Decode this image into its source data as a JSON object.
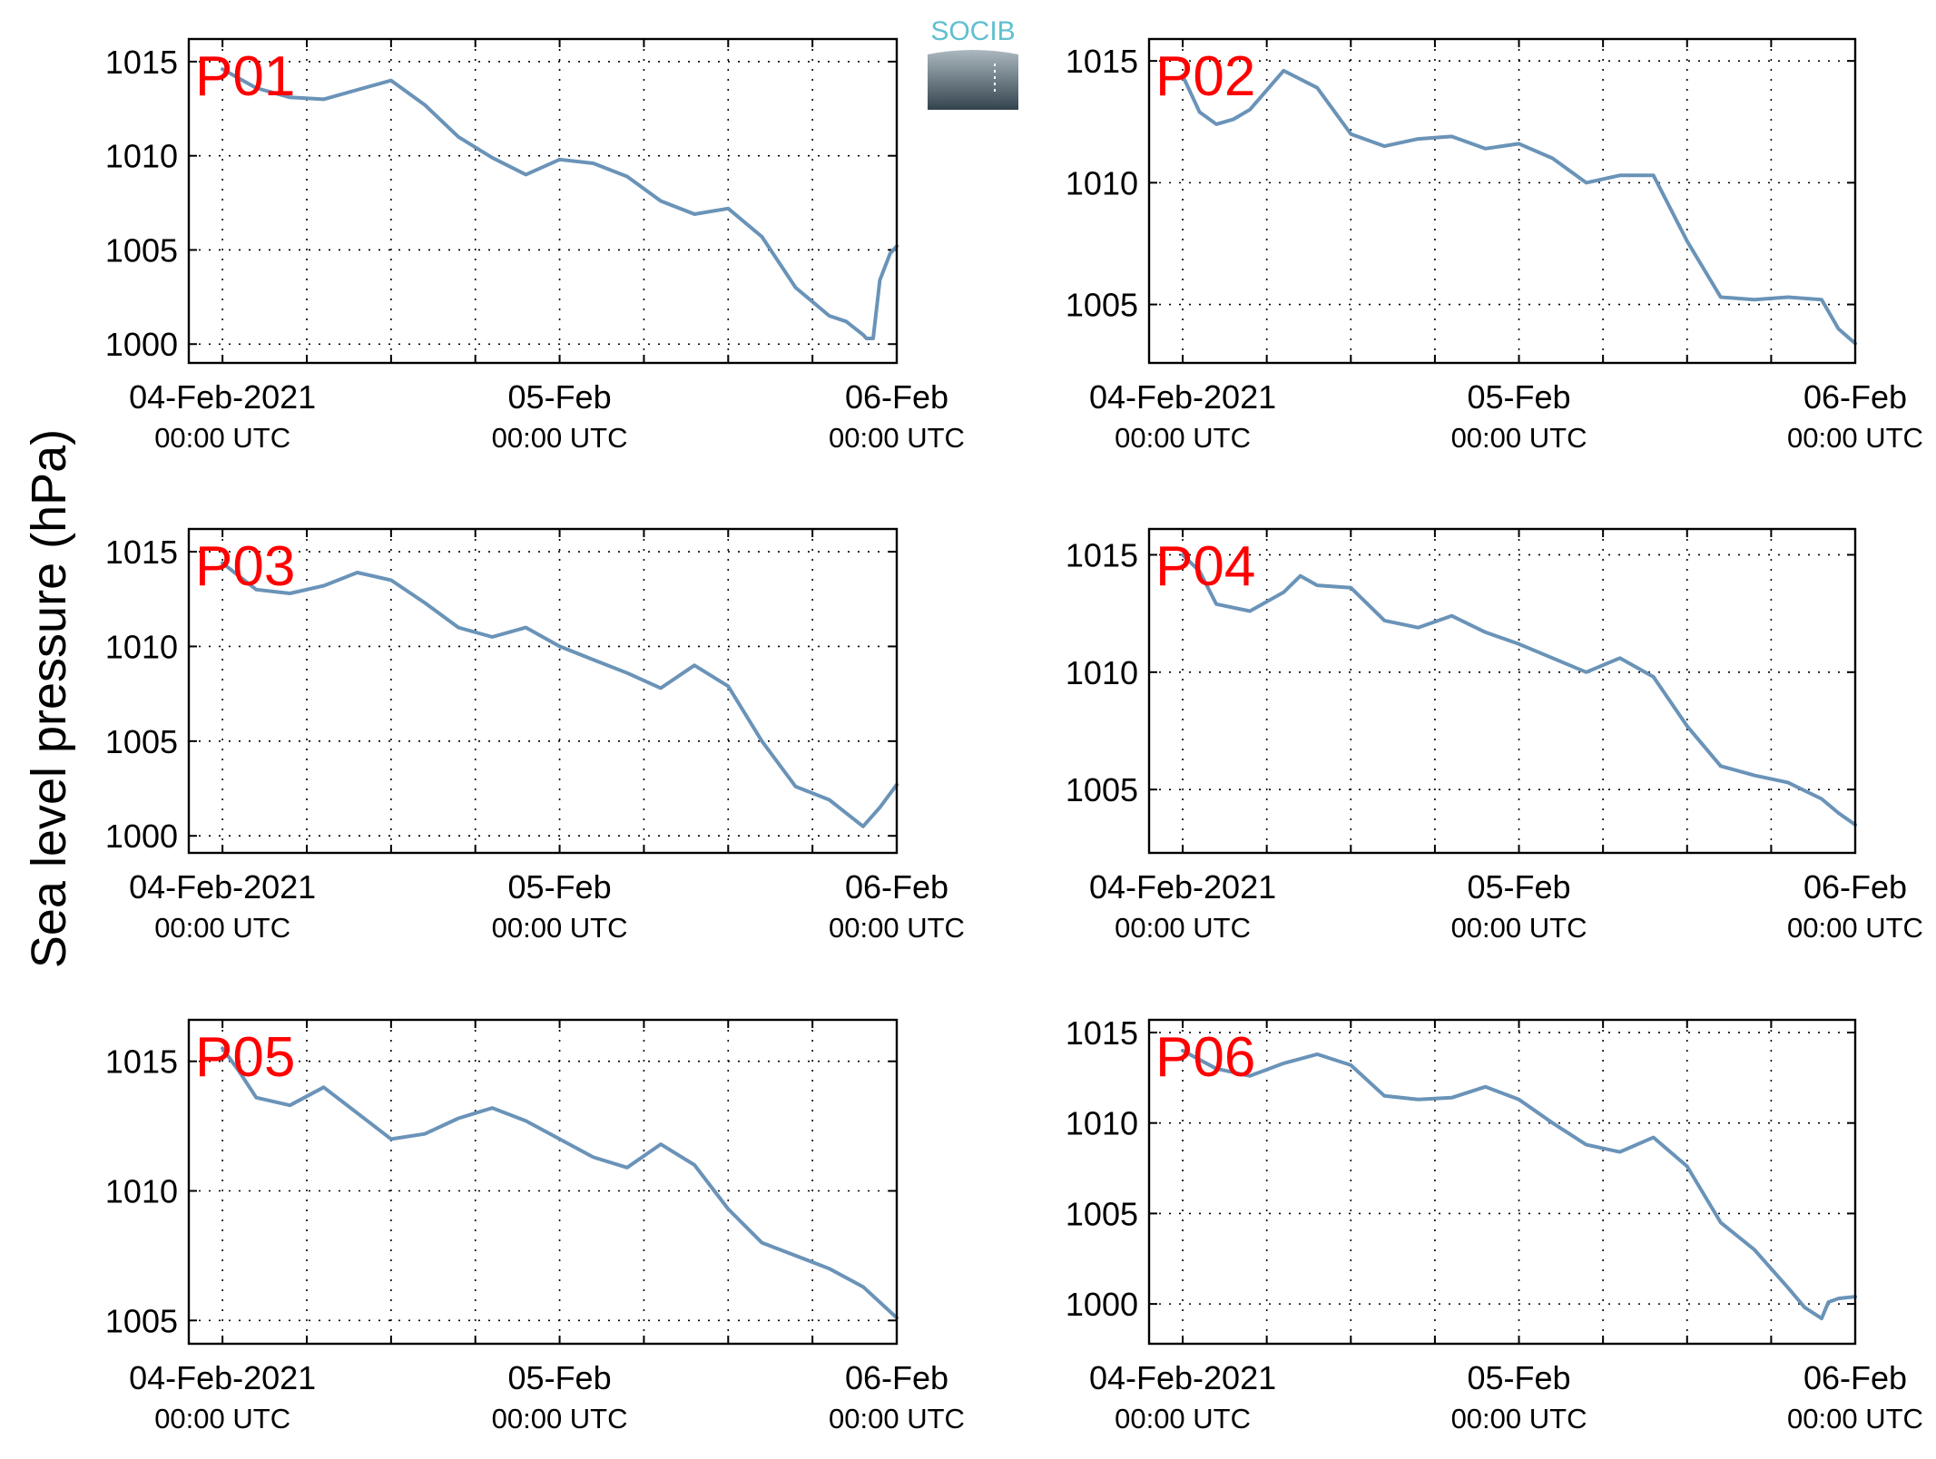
{
  "figure": {
    "ylabel": "Sea level pressure (hPa)",
    "logo_text": "SOCIB",
    "colors": {
      "line": "#6a93b8",
      "panel_label": "#ff0000",
      "logo_text": "#5fbfd0"
    },
    "x_tick_labels": [
      {
        "date": "04-Feb-2021",
        "time": "00:00 UTC"
      },
      {
        "date": "05-Feb",
        "time": "00:00 UTC"
      },
      {
        "date": "06-Feb",
        "time": "00:00 UTC"
      }
    ]
  },
  "chart_data": [
    {
      "type": "line",
      "label": "P01",
      "grid": true,
      "xlim": [
        -0.1,
        2.0
      ],
      "ylim": [
        999,
        1016.2
      ],
      "yticks": [
        1000,
        1005,
        1010,
        1015
      ],
      "x": [
        0.0,
        0.1,
        0.2,
        0.3,
        0.4,
        0.5,
        0.6,
        0.7,
        0.8,
        0.9,
        1.0,
        1.1,
        1.2,
        1.3,
        1.4,
        1.5,
        1.6,
        1.7,
        1.8,
        1.85,
        1.9,
        1.91,
        1.93,
        1.95,
        1.98,
        2.0
      ],
      "values": [
        1014.6,
        1013.6,
        1013.1,
        1013.0,
        1013.5,
        1014.0,
        1012.7,
        1011.0,
        1009.9,
        1009.0,
        1009.8,
        1009.6,
        1008.9,
        1007.6,
        1006.9,
        1007.2,
        1005.7,
        1003.0,
        1001.5,
        1001.2,
        1000.5,
        1000.3,
        1000.3,
        1003.4,
        1004.8,
        1005.2
      ]
    },
    {
      "type": "line",
      "label": "P02",
      "grid": true,
      "xlim": [
        -0.1,
        2.0
      ],
      "ylim": [
        1002.6,
        1015.9
      ],
      "yticks": [
        1005,
        1010,
        1015
      ],
      "x": [
        0.0,
        0.05,
        0.1,
        0.15,
        0.2,
        0.3,
        0.4,
        0.5,
        0.6,
        0.7,
        0.8,
        0.9,
        1.0,
        1.1,
        1.2,
        1.3,
        1.4,
        1.5,
        1.6,
        1.7,
        1.8,
        1.9,
        1.95,
        2.0
      ],
      "values": [
        1014.4,
        1012.9,
        1012.4,
        1012.6,
        1013.0,
        1014.6,
        1013.9,
        1012.0,
        1011.5,
        1011.8,
        1011.9,
        1011.4,
        1011.6,
        1011.0,
        1010.0,
        1010.3,
        1010.3,
        1007.6,
        1005.3,
        1005.2,
        1005.3,
        1005.2,
        1004.0,
        1003.4
      ]
    },
    {
      "type": "line",
      "label": "P03",
      "grid": true,
      "xlim": [
        -0.1,
        2.0
      ],
      "ylim": [
        999.1,
        1016.2
      ],
      "yticks": [
        1000,
        1005,
        1010,
        1015
      ],
      "x": [
        0.0,
        0.1,
        0.2,
        0.3,
        0.4,
        0.5,
        0.6,
        0.7,
        0.8,
        0.9,
        1.0,
        1.1,
        1.2,
        1.3,
        1.4,
        1.5,
        1.6,
        1.7,
        1.8,
        1.85,
        1.9,
        1.95,
        2.0
      ],
      "values": [
        1014.4,
        1013.0,
        1012.8,
        1013.2,
        1013.9,
        1013.5,
        1012.3,
        1011.0,
        1010.5,
        1011.0,
        1010.0,
        1009.3,
        1008.6,
        1007.8,
        1009.0,
        1007.9,
        1005.0,
        1002.6,
        1001.9,
        1001.2,
        1000.5,
        1001.5,
        1002.7
      ]
    },
    {
      "type": "line",
      "label": "P04",
      "grid": true,
      "xlim": [
        -0.1,
        2.0
      ],
      "ylim": [
        1002.3,
        1016.1
      ],
      "yticks": [
        1005,
        1010,
        1015
      ],
      "x": [
        0.0,
        0.05,
        0.1,
        0.2,
        0.3,
        0.35,
        0.4,
        0.5,
        0.6,
        0.7,
        0.8,
        0.9,
        1.0,
        1.1,
        1.2,
        1.3,
        1.4,
        1.5,
        1.6,
        1.7,
        1.8,
        1.9,
        1.95,
        2.0
      ],
      "values": [
        1015.0,
        1014.3,
        1012.9,
        1012.6,
        1013.4,
        1014.1,
        1013.7,
        1013.6,
        1012.2,
        1011.9,
        1012.4,
        1011.7,
        1011.2,
        1010.6,
        1010.0,
        1010.6,
        1009.8,
        1007.7,
        1006.0,
        1005.6,
        1005.3,
        1004.6,
        1004.0,
        1003.5
      ]
    },
    {
      "type": "line",
      "label": "P05",
      "grid": true,
      "xlim": [
        -0.1,
        2.0
      ],
      "ylim": [
        1004.1,
        1016.6
      ],
      "yticks": [
        1005,
        1010,
        1015
      ],
      "x": [
        0.0,
        0.05,
        0.1,
        0.2,
        0.3,
        0.4,
        0.5,
        0.6,
        0.7,
        0.8,
        0.9,
        1.0,
        1.1,
        1.2,
        1.3,
        1.4,
        1.5,
        1.6,
        1.7,
        1.8,
        1.9,
        2.0
      ],
      "values": [
        1015.5,
        1014.6,
        1013.6,
        1013.3,
        1014.0,
        1013.0,
        1012.0,
        1012.2,
        1012.8,
        1013.2,
        1012.7,
        1012.0,
        1011.3,
        1010.9,
        1011.8,
        1011.0,
        1009.3,
        1008.0,
        1007.5,
        1007.0,
        1006.3,
        1005.1
      ]
    },
    {
      "type": "line",
      "label": "P06",
      "grid": true,
      "xlim": [
        -0.1,
        2.0
      ],
      "ylim": [
        997.8,
        1015.7
      ],
      "yticks": [
        1000,
        1005,
        1010,
        1015
      ],
      "x": [
        0.0,
        0.1,
        0.2,
        0.3,
        0.4,
        0.5,
        0.6,
        0.7,
        0.8,
        0.9,
        1.0,
        1.1,
        1.2,
        1.3,
        1.4,
        1.5,
        1.6,
        1.7,
        1.8,
        1.85,
        1.9,
        1.92,
        1.95,
        2.0
      ],
      "values": [
        1014.0,
        1013.0,
        1012.6,
        1013.3,
        1013.8,
        1013.2,
        1011.5,
        1011.3,
        1011.4,
        1012.0,
        1011.3,
        1010.0,
        1008.8,
        1008.4,
        1009.2,
        1007.6,
        1004.5,
        1003.0,
        1000.9,
        999.8,
        999.2,
        1000.1,
        1000.3,
        1000.4
      ]
    }
  ]
}
